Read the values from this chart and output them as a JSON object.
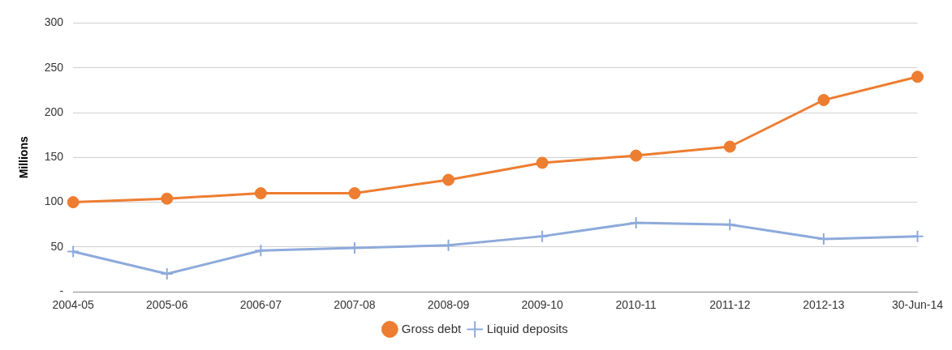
{
  "chart_data": {
    "type": "line",
    "ylabel": "Millions",
    "categories": [
      "2004-05",
      "2005-06",
      "2006-07",
      "2007-08",
      "2008-09",
      "2009-10",
      "2010-11",
      "2011-12",
      "2012-13",
      "30-Jun-14"
    ],
    "series": [
      {
        "name": "Gross debt",
        "color": "#ed7d31",
        "marker": "circle",
        "values": [
          100,
          104,
          110,
          110,
          125,
          144,
          152,
          162,
          214,
          240
        ]
      },
      {
        "name": "Liquid deposits",
        "color": "#8eaadb",
        "marker": "cross",
        "values": [
          45,
          20,
          46,
          49,
          52,
          62,
          77,
          75,
          59,
          62
        ]
      }
    ],
    "ylim": [
      0,
      300
    ],
    "yticks": [
      {
        "value": 0,
        "label": "-"
      },
      50,
      100,
      150,
      200,
      250,
      300
    ],
    "grid": "y",
    "legend": "bottom",
    "line_style": "solid"
  }
}
